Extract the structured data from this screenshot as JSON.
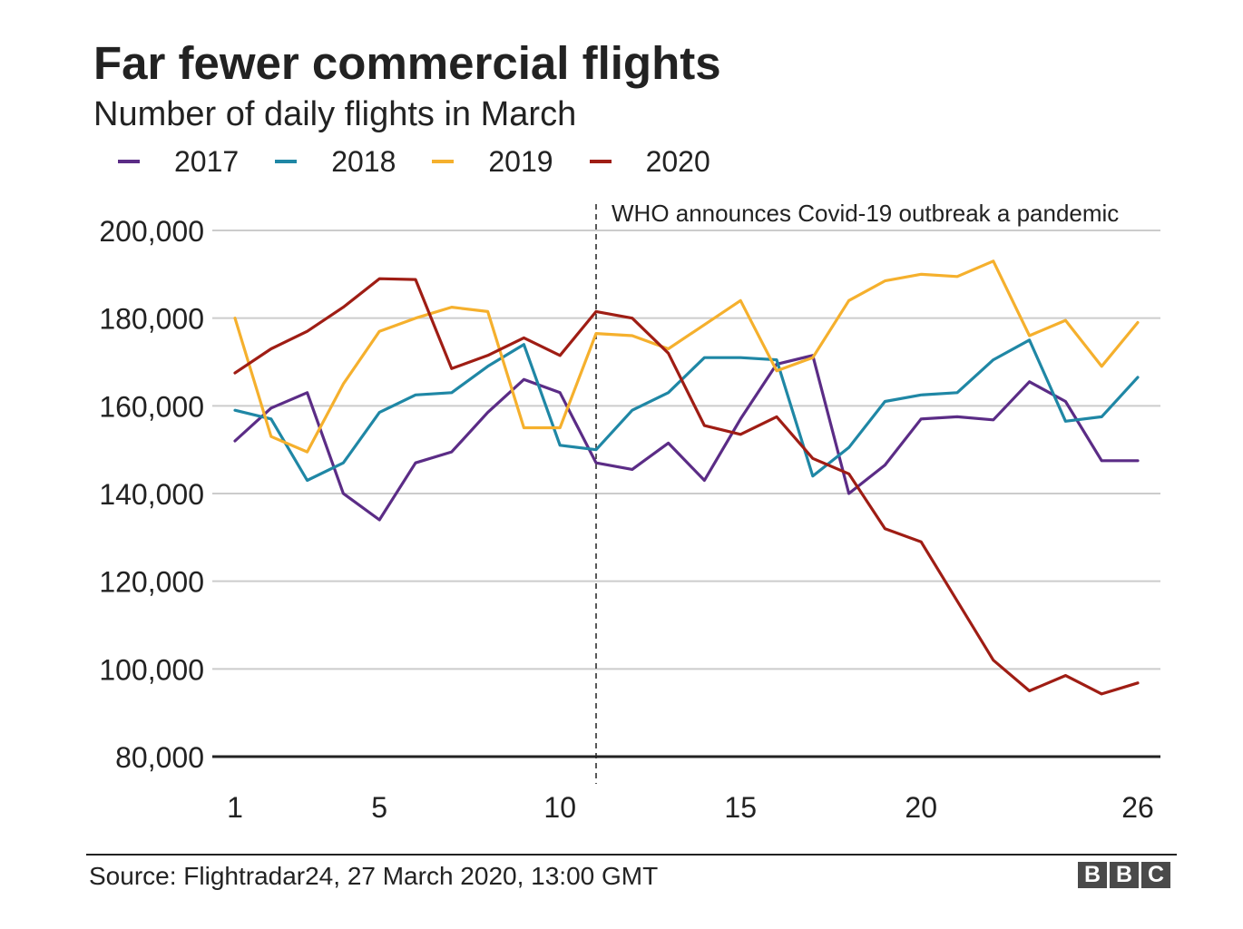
{
  "chart_data": {
    "type": "line",
    "title": "Far fewer commercial flights",
    "subtitle": "Number of daily flights in March",
    "xlim": [
      1,
      26
    ],
    "ylim": [
      80000,
      200000
    ],
    "x_ticks": [
      1,
      5,
      10,
      15,
      20,
      26
    ],
    "x_tick_labels": [
      "1",
      "5",
      "10",
      "15",
      "20",
      "26"
    ],
    "y_ticks": [
      80000,
      100000,
      120000,
      140000,
      160000,
      180000,
      200000
    ],
    "y_tick_labels": [
      "80,000",
      "100,000",
      "120,000",
      "140,000",
      "160,000",
      "180,000",
      "200,000"
    ],
    "grid": true,
    "legend_position": "top-left",
    "x": [
      1,
      2,
      3,
      4,
      5,
      6,
      7,
      8,
      9,
      10,
      11,
      12,
      13,
      14,
      15,
      16,
      17,
      18,
      19,
      20,
      21,
      22,
      23,
      24,
      25,
      26
    ],
    "series": [
      {
        "name": "2017",
        "color": "#5b2c86",
        "values": [
          152000,
          159500,
          163000,
          140000,
          134000,
          147000,
          149500,
          158500,
          166000,
          163000,
          147000,
          145500,
          151500,
          143000,
          157000,
          169500,
          171500,
          140000,
          146500,
          157000,
          157500,
          156800,
          165500,
          161000,
          147500,
          147500
        ]
      },
      {
        "name": "2018",
        "color": "#1f87a5",
        "values": [
          159000,
          157000,
          143000,
          147000,
          158500,
          162500,
          163000,
          169000,
          174000,
          151000,
          150000,
          159000,
          163000,
          171000,
          171000,
          170500,
          144000,
          150500,
          161000,
          162500,
          163000,
          170500,
          175000,
          156500,
          157500,
          166500
        ]
      },
      {
        "name": "2019",
        "color": "#f5b02d",
        "values": [
          180000,
          153000,
          149500,
          165000,
          177000,
          180000,
          182500,
          181500,
          155000,
          155000,
          176500,
          176000,
          173000,
          178500,
          184000,
          168000,
          171000,
          184000,
          188500,
          190000,
          189500,
          193000,
          176000,
          179500,
          169000,
          179000
        ]
      },
      {
        "name": "2020",
        "color": "#9f1d14",
        "values": [
          167500,
          173000,
          177000,
          182500,
          189000,
          188800,
          168500,
          171500,
          175500,
          171500,
          181500,
          180000,
          172000,
          155500,
          153500,
          157500,
          148000,
          144500,
          132000,
          129000,
          115500,
          102000,
          95000,
          98500,
          94300,
          96800
        ]
      }
    ],
    "annotation": {
      "text": "WHO announces Covid-19 outbreak a pandemic",
      "x": 11
    }
  },
  "source": "Source: Flightradar24, 27 March 2020, 13:00 GMT",
  "logo": {
    "letters": [
      "B",
      "B",
      "C"
    ]
  }
}
